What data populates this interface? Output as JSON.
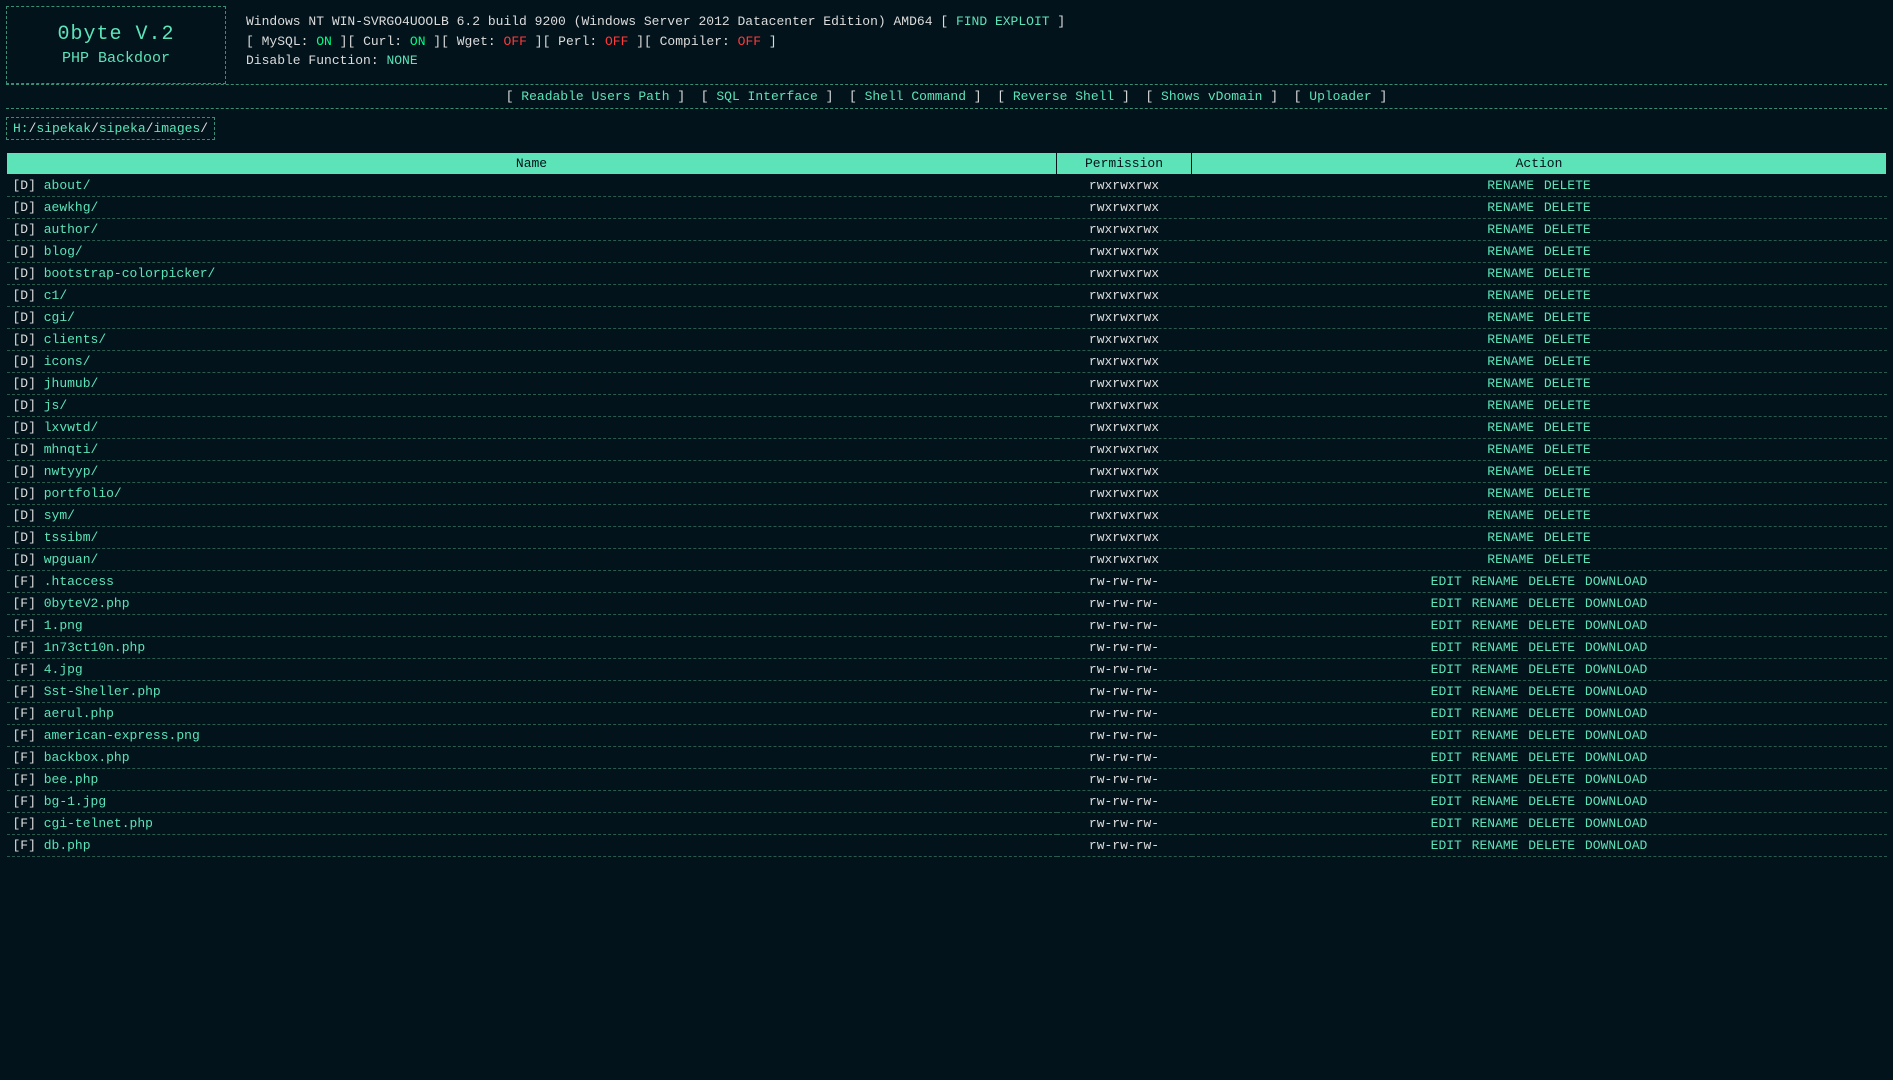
{
  "header": {
    "logo_title": "0byte V.2",
    "logo_subtitle": "PHP Backdoor",
    "system_line": "Windows NT WIN-SVRGO4UOOLB 6.2 build 9200 (Windows Server 2012 Datacenter Edition) AMD64",
    "find_exploit": "FIND EXPLOIT",
    "mods": {
      "mysql_label": "MySQL:",
      "mysql_state": "ON",
      "curl_label": "Curl:",
      "curl_state": "ON",
      "wget_label": "Wget:",
      "wget_state": "OFF",
      "perl_label": "Perl:",
      "perl_state": "OFF",
      "compiler_label": "Compiler:",
      "compiler_state": "OFF"
    },
    "disable_label": "Disable Function:",
    "disable_value": "NONE"
  },
  "menu": {
    "readable": "Readable Users Path",
    "sql": "SQL Interface",
    "shell": "Shell Command",
    "reverse": "Reverse Shell",
    "vdomain": "Shows vDomain",
    "uploader": "Uploader"
  },
  "breadcrumbs": [
    "H:",
    "sipekak",
    "sipeka",
    "images"
  ],
  "table": {
    "headers": {
      "name": "Name",
      "permission": "Permission",
      "action": "Action"
    },
    "labels": {
      "dir": "[D]",
      "file": "[F]",
      "rename": "RENAME",
      "delete": "DELETE",
      "edit": "EDIT",
      "download": "DOWNLOAD"
    },
    "rows": [
      {
        "type": "D",
        "name": "about/",
        "perm": "rwxrwxrwx"
      },
      {
        "type": "D",
        "name": "aewkhg/",
        "perm": "rwxrwxrwx"
      },
      {
        "type": "D",
        "name": "author/",
        "perm": "rwxrwxrwx"
      },
      {
        "type": "D",
        "name": "blog/",
        "perm": "rwxrwxrwx"
      },
      {
        "type": "D",
        "name": "bootstrap-colorpicker/",
        "perm": "rwxrwxrwx"
      },
      {
        "type": "D",
        "name": "c1/",
        "perm": "rwxrwxrwx"
      },
      {
        "type": "D",
        "name": "cgi/",
        "perm": "rwxrwxrwx"
      },
      {
        "type": "D",
        "name": "clients/",
        "perm": "rwxrwxrwx"
      },
      {
        "type": "D",
        "name": "icons/",
        "perm": "rwxrwxrwx"
      },
      {
        "type": "D",
        "name": "jhumub/",
        "perm": "rwxrwxrwx"
      },
      {
        "type": "D",
        "name": "js/",
        "perm": "rwxrwxrwx"
      },
      {
        "type": "D",
        "name": "lxvwtd/",
        "perm": "rwxrwxrwx"
      },
      {
        "type": "D",
        "name": "mhnqti/",
        "perm": "rwxrwxrwx"
      },
      {
        "type": "D",
        "name": "nwtyyp/",
        "perm": "rwxrwxrwx"
      },
      {
        "type": "D",
        "name": "portfolio/",
        "perm": "rwxrwxrwx"
      },
      {
        "type": "D",
        "name": "sym/",
        "perm": "rwxrwxrwx"
      },
      {
        "type": "D",
        "name": "tssibm/",
        "perm": "rwxrwxrwx"
      },
      {
        "type": "D",
        "name": "wpguan/",
        "perm": "rwxrwxrwx"
      },
      {
        "type": "F",
        "name": ".htaccess",
        "perm": "rw-rw-rw-"
      },
      {
        "type": "F",
        "name": "0byteV2.php",
        "perm": "rw-rw-rw-"
      },
      {
        "type": "F",
        "name": "1.png",
        "perm": "rw-rw-rw-"
      },
      {
        "type": "F",
        "name": "1n73ct10n.php",
        "perm": "rw-rw-rw-"
      },
      {
        "type": "F",
        "name": "4.jpg",
        "perm": "rw-rw-rw-"
      },
      {
        "type": "F",
        "name": "Sst-Sheller.php",
        "perm": "rw-rw-rw-"
      },
      {
        "type": "F",
        "name": "aerul.php",
        "perm": "rw-rw-rw-"
      },
      {
        "type": "F",
        "name": "american-express.png",
        "perm": "rw-rw-rw-"
      },
      {
        "type": "F",
        "name": "backbox.php",
        "perm": "rw-rw-rw-"
      },
      {
        "type": "F",
        "name": "bee.php",
        "perm": "rw-rw-rw-"
      },
      {
        "type": "F",
        "name": "bg-1.jpg",
        "perm": "rw-rw-rw-"
      },
      {
        "type": "F",
        "name": "cgi-telnet.php",
        "perm": "rw-rw-rw-"
      },
      {
        "type": "F",
        "name": "db.php",
        "perm": "rw-rw-rw-"
      }
    ]
  },
  "colors": {
    "bg": "#02131b",
    "accent": "#5ce4b8",
    "text_light": "#dcdcdc",
    "on": "#00ff88",
    "off": "#ff3b3b",
    "border": "#3a8e73",
    "row_border": "#2a5c4d"
  }
}
